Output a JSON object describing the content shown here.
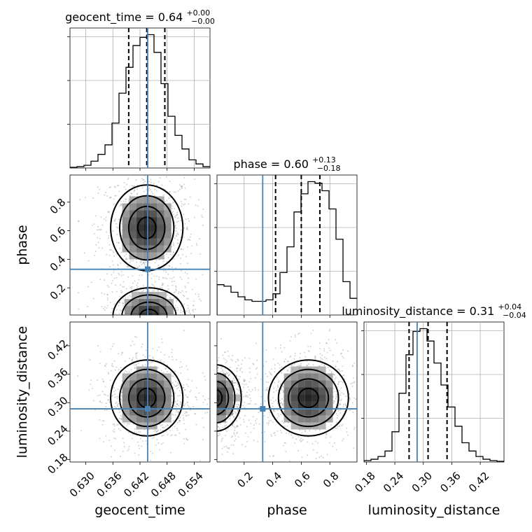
{
  "chart_data": {
    "type": "corner",
    "parameters": [
      {
        "name": "geocent_time",
        "xlabel": "geocent_time",
        "title_text": "geocent_time = 0.64",
        "title_sup": "+0.00",
        "title_sub": "−0.00",
        "median": 0.6435,
        "q_low": 0.6395,
        "q_high": 0.6475,
        "truth": 0.6437,
        "range": [
          0.6265,
          0.6575
        ],
        "ticks": [
          0.63,
          0.636,
          0.642,
          0.648,
          0.654
        ],
        "tick_labels": [
          "0.630",
          "0.636",
          "0.642",
          "0.648",
          "0.654"
        ],
        "hist": {
          "edges_start": 0.6265,
          "bin_width": 0.00155,
          "counts": [
            0.5,
            1,
            2,
            5,
            10,
            17,
            33,
            55,
            74,
            90,
            96,
            98,
            85,
            62,
            38,
            24,
            14,
            6,
            3,
            1
          ]
        }
      },
      {
        "name": "phase",
        "xlabel": "phase",
        "ylabel": "phase",
        "title_text": "phase = 0.60",
        "title_sup": "+0.13",
        "title_sub": "−0.18",
        "median": 0.6,
        "q_low": 0.42,
        "q_high": 0.73,
        "truth": 0.33,
        "range": [
          0.01,
          0.99
        ],
        "ticks": [
          0.2,
          0.4,
          0.6,
          0.8
        ],
        "tick_labels": [
          "0.2",
          "0.4",
          "0.6",
          "0.8"
        ],
        "hist": {
          "edges_start": 0.01,
          "bin_width": 0.049,
          "counts": [
            20,
            19,
            15,
            12,
            10,
            9,
            9,
            10,
            14,
            28,
            45,
            68,
            80,
            88,
            87,
            82,
            70,
            50,
            22,
            11
          ]
        }
      },
      {
        "name": "luminosity_distance",
        "xlabel": "luminosity_distance",
        "ylabel": "luminosity_distance",
        "title_text": "luminosity_distance = 0.31",
        "title_sup": "+0.04",
        "title_sub": "−0.04",
        "median": 0.31,
        "q_low": 0.27,
        "q_high": 0.35,
        "truth": 0.287,
        "range": [
          0.175,
          0.47
        ],
        "ticks": [
          0.18,
          0.24,
          0.3,
          0.36,
          0.42
        ],
        "tick_labels": [
          "0.18",
          "0.24",
          "0.30",
          "0.36",
          "0.42"
        ],
        "hist": {
          "edges_start": 0.175,
          "bin_width": 0.01475,
          "counts": [
            1,
            2,
            4,
            8,
            22,
            50,
            78,
            95,
            97,
            88,
            72,
            56,
            40,
            26,
            14,
            8,
            4,
            2,
            1,
            0.5
          ]
        }
      }
    ],
    "truth_color": "#4682b4",
    "contour_blobs": [
      {
        "panel": "phase_vs_geocent_time",
        "center": [
          0.6435,
          0.62
        ],
        "sigma": [
          0.004,
          0.15
        ]
      },
      {
        "panel": "phase_vs_geocent_time",
        "center": [
          0.644,
          0.0
        ],
        "sigma": [
          0.004,
          0.1
        ]
      },
      {
        "panel": "luminosity_distance_vs_geocent_time",
        "center": [
          0.6435,
          0.31
        ],
        "sigma": [
          0.004,
          0.04
        ]
      },
      {
        "panel": "luminosity_distance_vs_phase",
        "center": [
          0.65,
          0.31
        ],
        "sigma": [
          0.14,
          0.04
        ]
      },
      {
        "panel": "luminosity_distance_vs_phase",
        "center": [
          0.0,
          0.31
        ],
        "sigma": [
          0.09,
          0.035
        ]
      }
    ]
  }
}
